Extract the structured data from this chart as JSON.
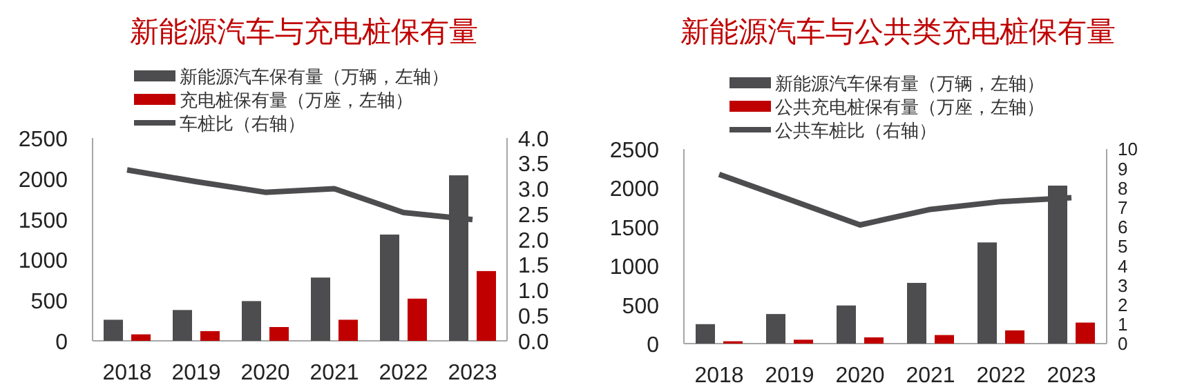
{
  "chart_data": [
    {
      "type": "bar",
      "title": "新能源汽车与充电桩保有量",
      "categories": [
        "2018",
        "2019",
        "2020",
        "2021",
        "2022",
        "2023"
      ],
      "series": [
        {
          "name": "新能源汽车保有量（万辆，左轴）",
          "color": "#4d4d4f",
          "values": [
            260,
            380,
            490,
            780,
            1310,
            2040
          ]
        },
        {
          "name": "充电桩保有量（万座，左轴）",
          "color": "#c00000",
          "values": [
            80,
            120,
            170,
            260,
            520,
            860
          ]
        },
        {
          "name": "车桩比（右轴）",
          "type": "line",
          "axis": "y2",
          "color": "#4d4d4f",
          "values": [
            3.37,
            3.14,
            2.93,
            3.0,
            2.53,
            2.39
          ]
        }
      ],
      "ylim": [
        0,
        2500
      ],
      "yticks": [
        0,
        500,
        1000,
        1500,
        2000,
        2500
      ],
      "y2lim": [
        0,
        4
      ],
      "y2ticks": [
        {
          "value": 0,
          "label": "0.0"
        },
        {
          "value": 0.5,
          "label": "0.5"
        },
        {
          "value": 1,
          "label": "1.0"
        },
        {
          "value": 1.5,
          "label": "1.5"
        },
        {
          "value": 2,
          "label": "2.0"
        },
        {
          "value": 2.5,
          "label": "2.5"
        },
        {
          "value": 3,
          "label": "3.0"
        },
        {
          "value": 3.5,
          "label": "3.5"
        },
        {
          "value": 4,
          "label": "4.0"
        }
      ],
      "legend": "top"
    },
    {
      "type": "bar",
      "title": "新能源汽车与公共类充电桩保有量",
      "categories": [
        "2018",
        "2019",
        "2020",
        "2021",
        "2022",
        "2023"
      ],
      "series": [
        {
          "name": "新能源汽车保有量（万辆，左轴）",
          "color": "#4d4d4f",
          "values": [
            250,
            380,
            490,
            780,
            1300,
            2030
          ]
        },
        {
          "name": "公共充电桩保有量（万座，左轴）",
          "color": "#c00000",
          "values": [
            30,
            50,
            80,
            110,
            170,
            270
          ]
        },
        {
          "name": "公共车桩比（右轴）",
          "type": "line",
          "axis": "y2",
          "color": "#4d4d4f",
          "values": [
            8.7,
            7.4,
            6.1,
            6.9,
            7.3,
            7.5
          ]
        }
      ],
      "ylim": [
        0,
        2500
      ],
      "yticks": [
        0,
        500,
        1000,
        1500,
        2000,
        2500
      ],
      "y2lim": [
        0,
        10
      ],
      "y2ticks": [
        0,
        1,
        2,
        3,
        4,
        5,
        6,
        7,
        8,
        9,
        10
      ],
      "legend": "top"
    }
  ]
}
